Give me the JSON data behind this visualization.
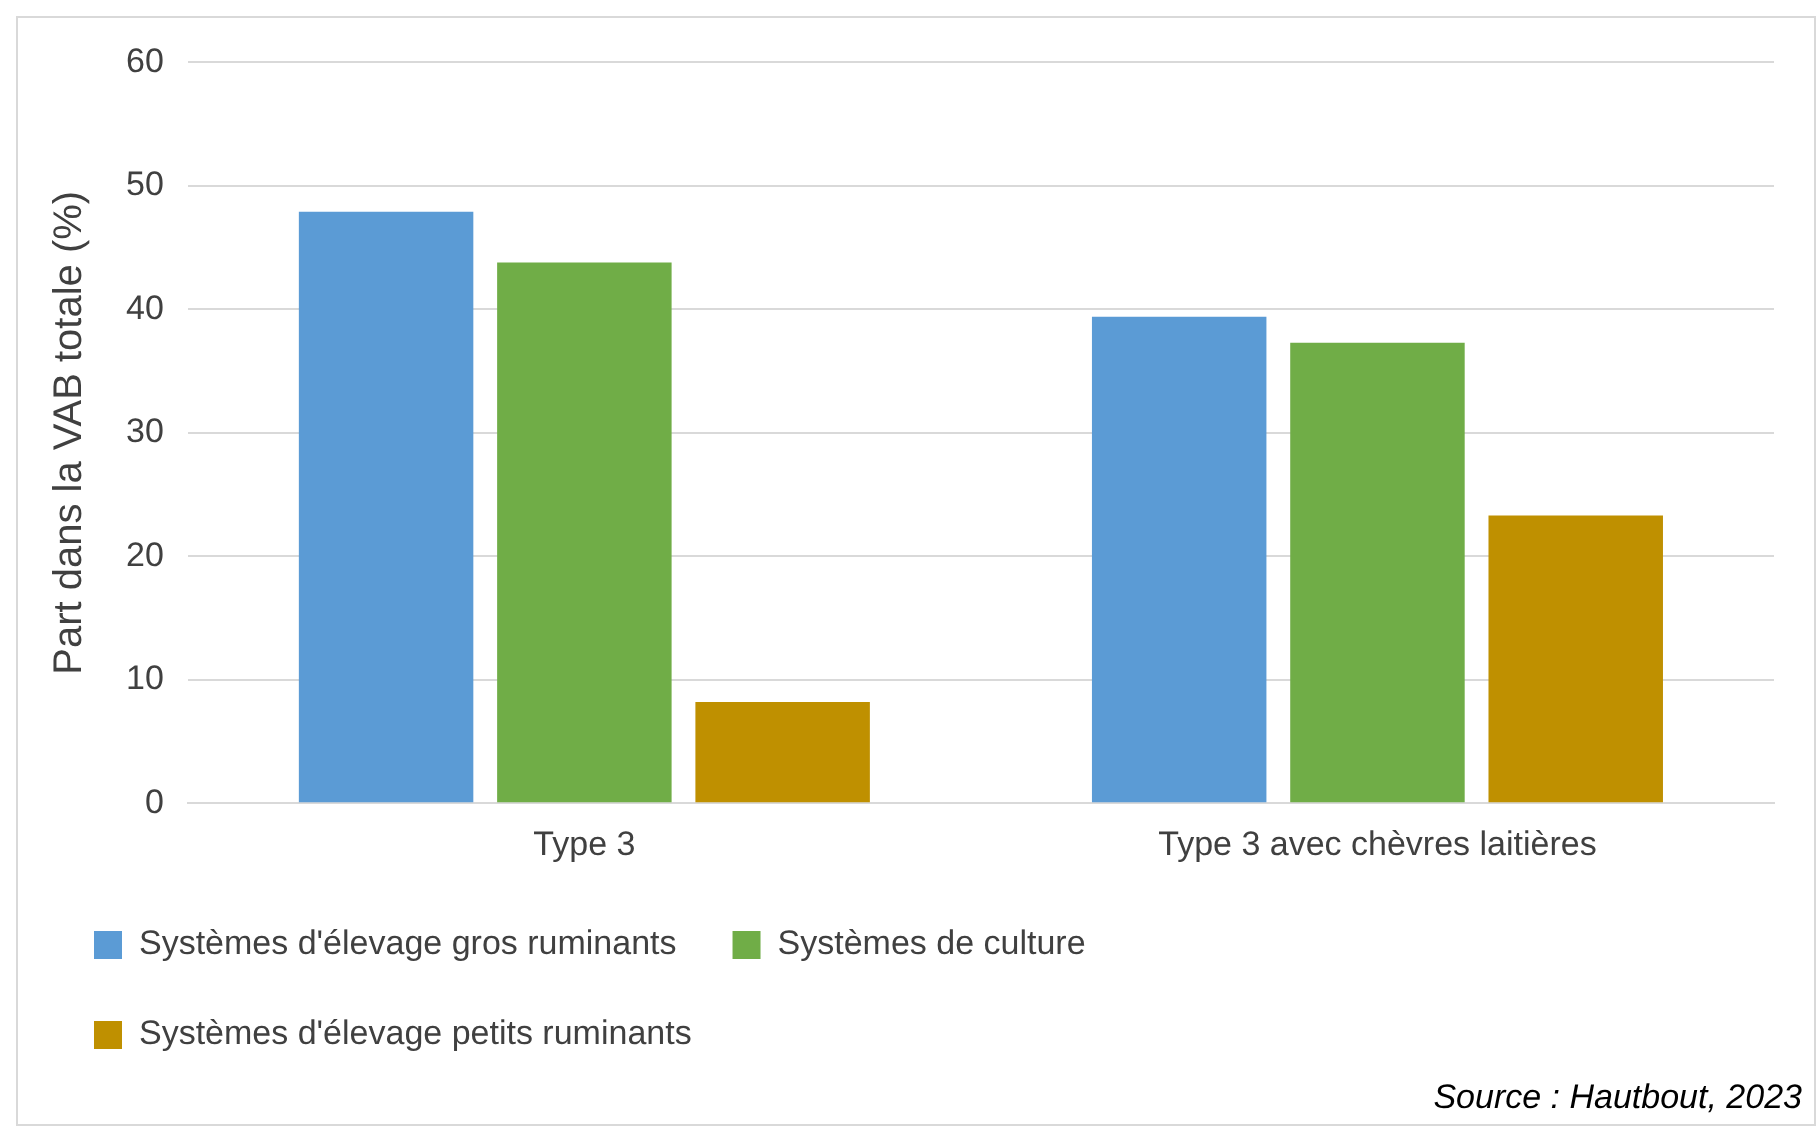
{
  "chart_data": {
    "type": "bar",
    "ylabel": "Part dans la VAB totale (%)",
    "categories": [
      "Type 3",
      "Type 3 avec chèvres laitières"
    ],
    "series": [
      {
        "name": "Systèmes d'élevage gros ruminants",
        "color": "#5b9bd5",
        "values": [
          47.9,
          39.4
        ]
      },
      {
        "name": "Systèmes de culture",
        "color": "#70ad47",
        "values": [
          43.8,
          37.3
        ]
      },
      {
        "name": "Systèmes d'élevage petits ruminants",
        "color": "#bf9000",
        "values": [
          8.2,
          23.3
        ]
      }
    ],
    "ylim": [
      0,
      60
    ],
    "yticks": [
      0,
      10,
      20,
      30,
      40,
      50,
      60
    ],
    "grid": "y",
    "legend": "bottom",
    "annotations": [
      "Source : Hautbout, 2023"
    ]
  }
}
